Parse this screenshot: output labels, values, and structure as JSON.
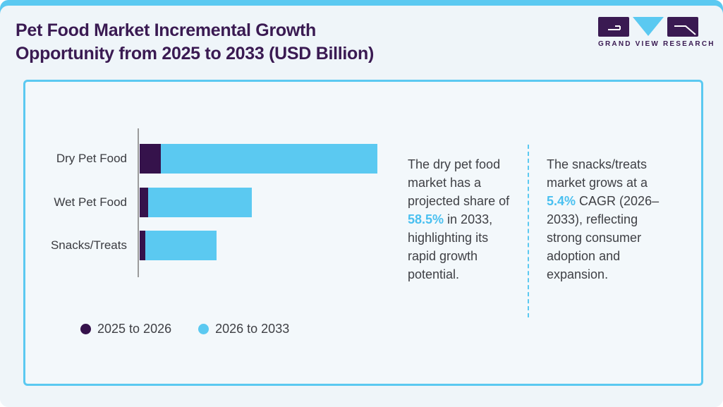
{
  "header": {
    "title_line1": "Pet Food Market Incremental Growth",
    "title_line2": "Opportunity from 2025 to 2033 (USD Billion)",
    "logo_text": "GRAND VIEW RESEARCH"
  },
  "colors": {
    "accent_blue": "#5BC9F1",
    "bar_dark_purple": "#35124B",
    "bar_light_blue": "#5BC9F1",
    "title_purple": "#3A1A52",
    "highlight_blue": "#4AC0F0",
    "body_text_gray": "#3F4045",
    "page_bg": "#EFF5F9",
    "card_bg": "#F3F8FB",
    "axis_gray": "#9B9B9B"
  },
  "chart_data": {
    "type": "bar",
    "orientation": "horizontal",
    "title": "Pet Food Market Incremental Growth Opportunity from 2025 to 2033 (USD Billion)",
    "categories": [
      "Dry Pet Food",
      "Wet Pet Food",
      "Snacks/Treats"
    ],
    "series": [
      {
        "name": "2025 to 2026",
        "color": "#35124B",
        "values_relative": [
          30,
          12,
          8
        ]
      },
      {
        "name": "2026 to 2033",
        "color": "#5BC9F1",
        "values_relative": [
          307,
          147,
          101
        ]
      }
    ],
    "value_axis": "unlabeled (USD Billion, relative bar lengths only)",
    "grid": false,
    "legend_position": "bottom-left",
    "annotations": [
      "Dry pet food projected share of 58.5% in 2033",
      "Snacks/treats market grows at a 5.4% CAGR (2026–2033)"
    ]
  },
  "notes": [
    {
      "pre": "The dry pet food market has a projected share of ",
      "highlight": "58.5%",
      "post": " in 2033, highlighting its rapid growth potential."
    },
    {
      "pre": "The snacks/treats market grows at a ",
      "highlight": "5.4%",
      "post": " CAGR (2026–2033), reflecting strong consumer adoption and expansion."
    }
  ]
}
